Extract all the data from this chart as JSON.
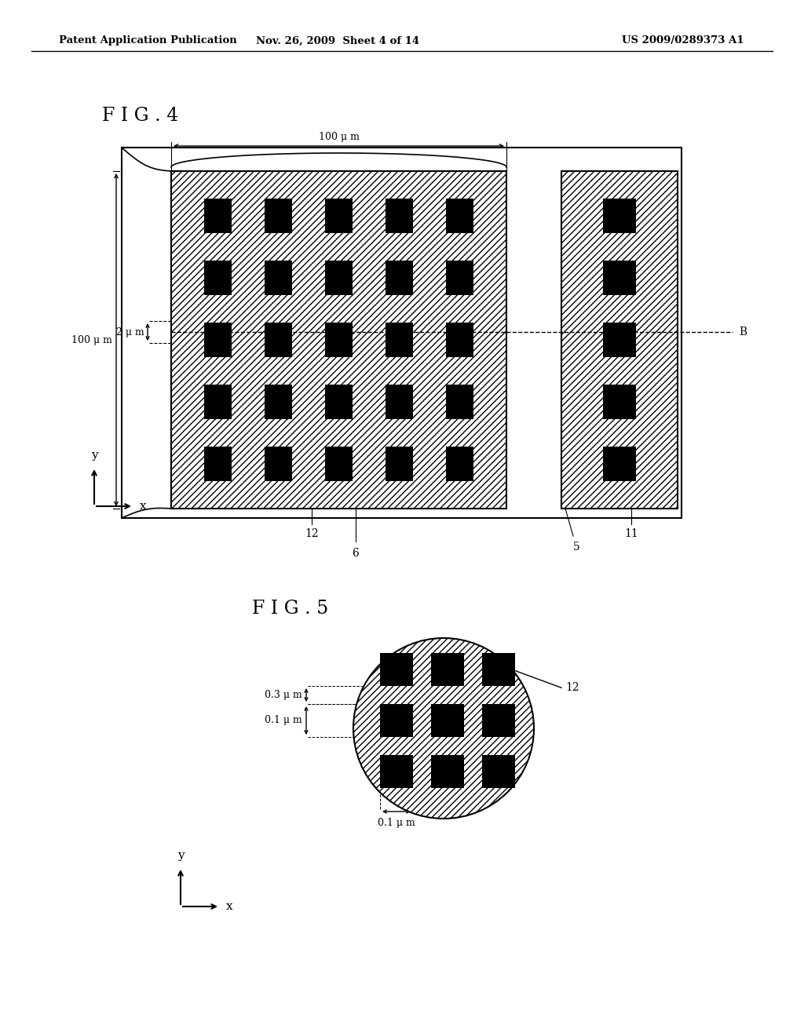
{
  "header_left": "Patent Application Publication",
  "header_mid": "Nov. 26, 2009  Sheet 4 of 14",
  "header_right": "US 2009/0289373 A1",
  "fig4_label": "F I G . 4",
  "fig5_label": "F I G . 5",
  "bg_color": "#ffffff",
  "fig4": {
    "label_100um_top": "100 μ m",
    "label_100um_left": "100 μ m",
    "label_2um": "2 μ m",
    "label_12": "12",
    "label_11": "11",
    "label_6": "6",
    "label_5": "5",
    "label_B": "B"
  },
  "fig5": {
    "label_12": "12",
    "label_03um": "0.3 μ m",
    "label_01um_vert": "0.1 μ m",
    "label_01um_horiz": "0.1 μ m"
  }
}
